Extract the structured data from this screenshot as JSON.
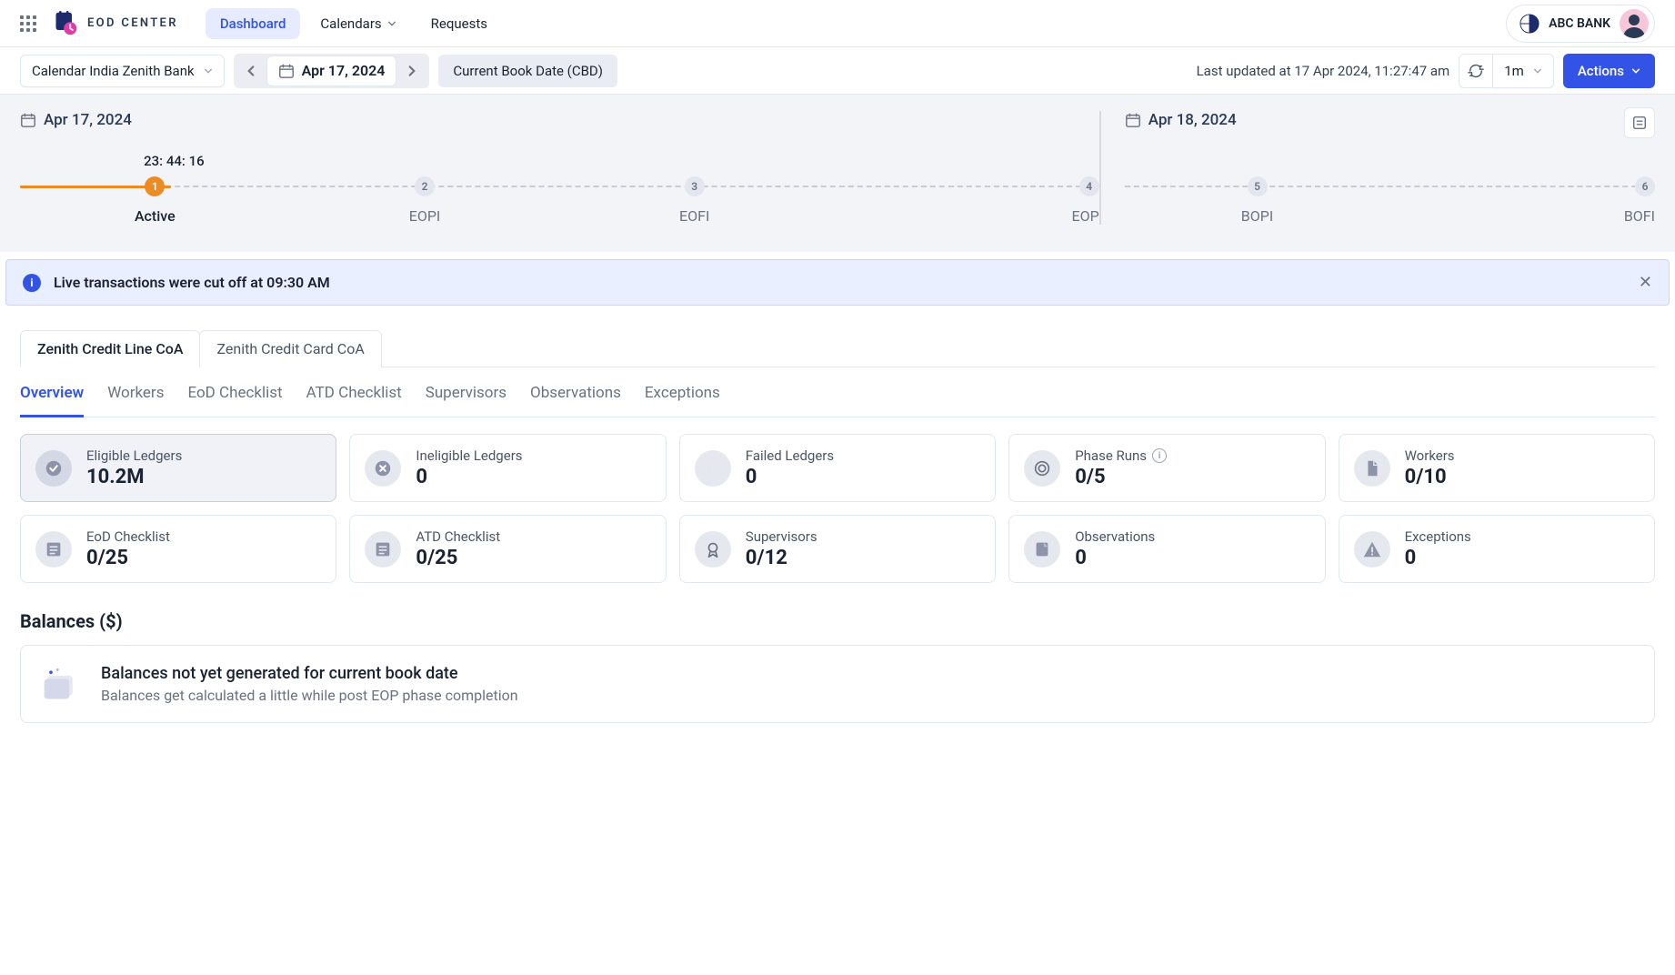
{
  "brand": {
    "name": "EOD CENTER"
  },
  "nav": {
    "dashboard": "Dashboard",
    "calendars": "Calendars",
    "requests": "Requests"
  },
  "bank": {
    "name": "ABC BANK"
  },
  "toolbar": {
    "calendar_select": "Calendar India Zenith Bank",
    "date": "Apr 17, 2024",
    "book_date_pill": "Current Book Date (CBD)",
    "last_updated": "Last updated at 17 Apr 2024, 11:27:47 am",
    "refresh_interval": "1m",
    "actions": "Actions"
  },
  "timeline": {
    "day1": "Apr 17, 2024",
    "day2": "Apr 18, 2024",
    "countdown": "23: 44: 16",
    "progress_pct": 14,
    "steps_day1": [
      {
        "num": "1",
        "label": "Active",
        "active": true
      },
      {
        "num": "2",
        "label": "EOPI"
      },
      {
        "num": "3",
        "label": "EOFI"
      },
      {
        "num": "4",
        "label": "EOP"
      }
    ],
    "steps_day2": [
      {
        "num": "5",
        "label": "BOPI"
      },
      {
        "num": "6",
        "label": "BOFI"
      }
    ]
  },
  "banner": {
    "message": "Live transactions were cut off at 09:30 AM"
  },
  "coa_tabs": [
    {
      "label": "Zenith Credit Line CoA",
      "active": true
    },
    {
      "label": "Zenith Credit Card CoA"
    }
  ],
  "sub_tabs": [
    {
      "label": "Overview",
      "active": true
    },
    {
      "label": "Workers"
    },
    {
      "label": "EoD Checklist"
    },
    {
      "label": "ATD Checklist"
    },
    {
      "label": "Supervisors"
    },
    {
      "label": "Observations"
    },
    {
      "label": "Exceptions"
    }
  ],
  "stats": [
    {
      "title": "Eligible Ledgers",
      "value": "10.2M",
      "icon": "check",
      "highlight": true
    },
    {
      "title": "Ineligible Ledgers",
      "value": "0",
      "icon": "xcircle"
    },
    {
      "title": "Failed Ledgers",
      "value": "0",
      "icon": "moon"
    },
    {
      "title": "Phase Runs",
      "value": "0/5",
      "icon": "target",
      "info": true
    },
    {
      "title": "Workers",
      "value": "0/10",
      "icon": "file"
    },
    {
      "title": "EoD Checklist",
      "value": "0/25",
      "icon": "checklist"
    },
    {
      "title": "ATD Checklist",
      "value": "0/25",
      "icon": "checklist"
    },
    {
      "title": "Supervisors",
      "value": "0/12",
      "icon": "badge"
    },
    {
      "title": "Observations",
      "value": "0",
      "icon": "note"
    },
    {
      "title": "Exceptions",
      "value": "0",
      "icon": "warn"
    }
  ],
  "balances": {
    "heading": "Balances ($)",
    "empty_title": "Balances not yet generated for current book date",
    "empty_sub": "Balances get calculated a little while post EOP phase completion"
  },
  "colors": {
    "primary": "#3353e6",
    "accent_orange": "#ed8b23",
    "bg_panel": "#f3f4f8",
    "banner_bg": "#eaefff"
  }
}
